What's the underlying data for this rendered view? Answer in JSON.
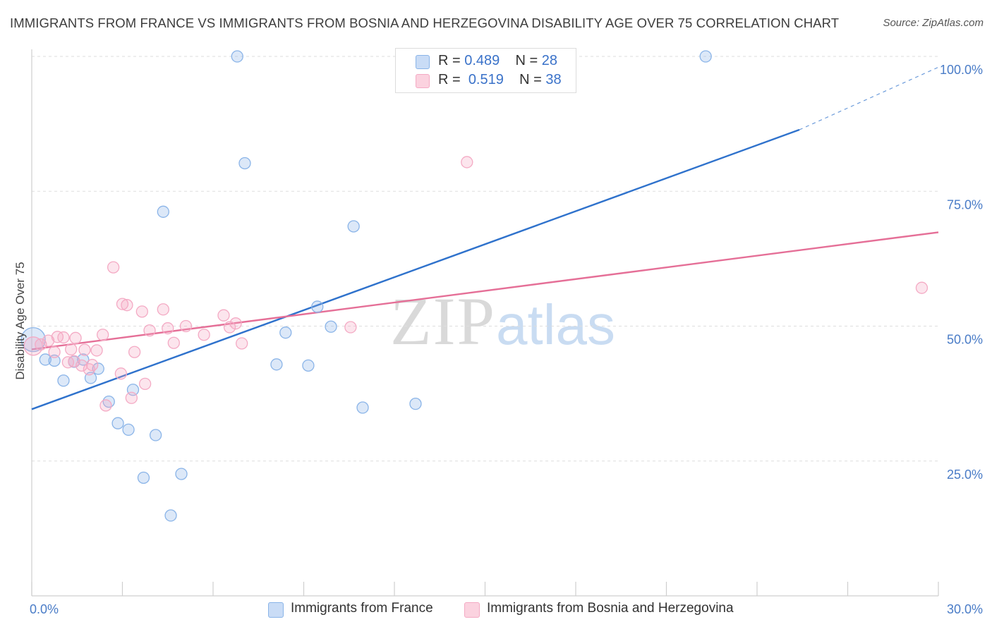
{
  "chart_data": {
    "type": "scatter",
    "title": "IMMIGRANTS FROM FRANCE VS IMMIGRANTS FROM BOSNIA AND HERZEGOVINA DISABILITY AGE OVER 75 CORRELATION CHART",
    "source": "Source: ZipAtlas.com",
    "ylabel": "Disability Age Over 75",
    "xlabel": "",
    "x_range": [
      0,
      30
    ],
    "y_range": [
      0,
      100
    ],
    "x_tick_labels": [
      "0.0%",
      "30.0%"
    ],
    "y_ticks": [
      25,
      50,
      75,
      100
    ],
    "y_tick_labels": [
      "25.0%",
      "50.0%",
      "75.0%",
      "100.0%"
    ],
    "watermark": {
      "zip": "ZIP",
      "atlas": "atlas"
    },
    "legend": {
      "entries": [
        {
          "r_label": "R =",
          "r_value": "0.489",
          "n_label": "N =",
          "n_value": "28"
        },
        {
          "r_label": "R =",
          "r_value": "0.519",
          "n_label": "N =",
          "n_value": "38"
        }
      ]
    },
    "series": [
      {
        "name": "Immigrants from France",
        "color": "#8ab4e8",
        "line_color": "#2f72cc",
        "trend": {
          "x0": 0,
          "y0": 34.6,
          "x1": 25.4,
          "y1": 86.4,
          "dash_to_x": 30,
          "dash_to_y": 98.0
        },
        "points": [
          [
            0.05,
            47.5
          ],
          [
            0.45,
            43.8
          ],
          [
            0.75,
            43.6
          ],
          [
            1.05,
            39.9
          ],
          [
            1.4,
            43.4
          ],
          [
            1.7,
            43.8
          ],
          [
            1.95,
            40.4
          ],
          [
            2.2,
            42.1
          ],
          [
            2.55,
            36.0
          ],
          [
            2.85,
            32.0
          ],
          [
            3.2,
            30.8
          ],
          [
            3.35,
            38.2
          ],
          [
            3.7,
            21.9
          ],
          [
            4.1,
            29.8
          ],
          [
            4.35,
            71.2
          ],
          [
            4.6,
            14.9
          ],
          [
            4.95,
            22.6
          ],
          [
            6.8,
            100.0
          ],
          [
            7.05,
            80.2
          ],
          [
            8.1,
            42.9
          ],
          [
            8.4,
            48.8
          ],
          [
            9.15,
            42.7
          ],
          [
            9.45,
            53.6
          ],
          [
            9.9,
            49.9
          ],
          [
            10.65,
            68.5
          ],
          [
            10.95,
            34.9
          ],
          [
            12.7,
            35.6
          ],
          [
            22.3,
            100.0
          ]
        ]
      },
      {
        "name": "Immigrants from Bosnia and Herzegovina",
        "color": "#f4aac4",
        "line_color": "#e56f97",
        "trend": {
          "x0": 0,
          "y0": 45.7,
          "x1": 30,
          "y1": 67.4
        },
        "points": [
          [
            0.05,
            46.3
          ],
          [
            0.3,
            46.6
          ],
          [
            0.55,
            47.3
          ],
          [
            0.75,
            45.2
          ],
          [
            0.85,
            48.0
          ],
          [
            1.05,
            47.9
          ],
          [
            1.2,
            43.3
          ],
          [
            1.3,
            45.7
          ],
          [
            1.4,
            43.5
          ],
          [
            1.45,
            47.8
          ],
          [
            1.65,
            42.7
          ],
          [
            1.75,
            45.6
          ],
          [
            1.9,
            42.0
          ],
          [
            2.0,
            42.8
          ],
          [
            2.15,
            45.5
          ],
          [
            2.35,
            48.4
          ],
          [
            2.45,
            35.3
          ],
          [
            2.7,
            60.9
          ],
          [
            2.95,
            41.2
          ],
          [
            3.0,
            54.1
          ],
          [
            3.15,
            53.9
          ],
          [
            3.3,
            36.7
          ],
          [
            3.4,
            45.2
          ],
          [
            3.65,
            52.7
          ],
          [
            3.75,
            39.3
          ],
          [
            3.9,
            49.2
          ],
          [
            4.35,
            53.1
          ],
          [
            4.5,
            49.6
          ],
          [
            4.7,
            46.9
          ],
          [
            5.1,
            50.0
          ],
          [
            5.7,
            48.4
          ],
          [
            6.35,
            52.0
          ],
          [
            6.55,
            49.8
          ],
          [
            6.75,
            50.5
          ],
          [
            6.95,
            46.8
          ],
          [
            10.55,
            49.8
          ],
          [
            14.4,
            80.4
          ],
          [
            29.45,
            57.1
          ]
        ]
      }
    ]
  }
}
